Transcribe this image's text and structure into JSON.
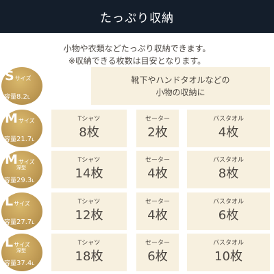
{
  "header": {
    "title": "たっぷり収納"
  },
  "intro": {
    "line1": "小物や衣類などたっぷり収納できます。",
    "line2": "※収納できる枚数は目安となります。"
  },
  "rows": [
    {
      "size": "S",
      "size_suffix": "サイズ",
      "deep": "",
      "capacity_label": "容量",
      "capacity": "8.2",
      "unit": "L",
      "description_line1": "靴下やハンドタオルなどの",
      "description_line2": "小物の収納に"
    },
    {
      "size": "M",
      "size_suffix": "サイズ",
      "deep": "",
      "capacity_label": "容量",
      "capacity": "21.7",
      "unit": "L",
      "items": [
        {
          "name": "Tシャツ",
          "count": "8枚"
        },
        {
          "name": "セーター",
          "count": "2枚"
        },
        {
          "name": "バスタオル",
          "count": "4枚"
        }
      ]
    },
    {
      "size": "M",
      "size_suffix": "サイズ",
      "deep": "深型",
      "capacity_label": "容量",
      "capacity": "29.3",
      "unit": "L",
      "items": [
        {
          "name": "Tシャツ",
          "count": "14枚"
        },
        {
          "name": "セーター",
          "count": "4枚"
        },
        {
          "name": "バスタオル",
          "count": "8枚"
        }
      ]
    },
    {
      "size": "L",
      "size_suffix": "サイズ",
      "deep": "",
      "capacity_label": "容量",
      "capacity": "27.7",
      "unit": "L",
      "items": [
        {
          "name": "Tシャツ",
          "count": "12枚"
        },
        {
          "name": "セーター",
          "count": "4枚"
        },
        {
          "name": "バスタオル",
          "count": "6枚"
        }
      ]
    },
    {
      "size": "L",
      "size_suffix": "サイズ",
      "deep": "深型",
      "capacity_label": "容量",
      "capacity": "37.4",
      "unit": "L",
      "items": [
        {
          "name": "Tシャツ",
          "count": "18枚"
        },
        {
          "name": "セーター",
          "count": "6枚"
        },
        {
          "name": "バスタオル",
          "count": "10枚"
        }
      ]
    }
  ],
  "colors": {
    "header_bg": "#141e2b",
    "badge_gold": "#c6a15a",
    "cell_bg": "#f7f0df",
    "text": "#4a4540"
  }
}
